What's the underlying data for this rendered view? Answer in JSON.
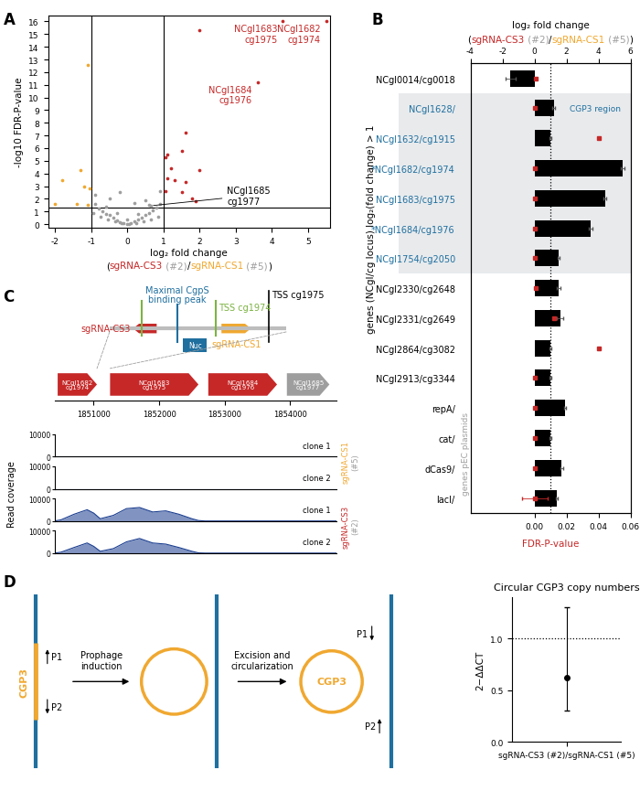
{
  "panel_labels": [
    "A",
    "B",
    "C",
    "D"
  ],
  "chart_data": [
    {
      "type": "scatter",
      "x_label": "log₂ fold change",
      "x_label_parts": [
        {
          "text": "(",
          "color": "#000000"
        },
        {
          "text": "sgRNA-CS3",
          "color": "#c62828"
        },
        {
          "text": " (#2)",
          "color": "#9e9e9e"
        },
        {
          "text": "/",
          "color": "#000000"
        },
        {
          "text": "sgRNA-CS1",
          "color": "#f0a830"
        },
        {
          "text": " (#5)",
          "color": "#9e9e9e"
        },
        {
          "text": ")",
          "color": "#000000"
        }
      ],
      "y_label": "-log10 FDR-P-value",
      "xlim": [
        -2.2,
        5.6
      ],
      "xticks": [
        -2,
        -1,
        0,
        1,
        2,
        3,
        4,
        5
      ],
      "ylim": [
        -0.3,
        16.5
      ],
      "yticks": [
        0,
        1,
        2,
        3,
        4,
        5,
        6,
        7,
        8,
        9,
        10,
        11,
        12,
        13,
        14,
        15,
        16
      ],
      "threshold_lines": {
        "x": [
          -1,
          1
        ],
        "y": [
          1.3
        ]
      },
      "series": [
        {
          "color": "#9e9e9e",
          "x": [
            -0.9,
            -0.8,
            -0.7,
            -0.6,
            -0.5,
            -0.4,
            -0.3,
            -0.2,
            -0.1,
            0.0,
            0.1,
            0.2,
            0.3,
            0.4,
            0.5,
            0.6,
            0.7,
            0.8,
            0.9,
            -0.95,
            -0.75,
            -0.55,
            -0.35,
            -0.15,
            0.05,
            0.25,
            0.45,
            0.65,
            0.85,
            -0.6,
            -0.3,
            0.0,
            0.3,
            0.6,
            -0.5,
            0.5,
            -0.2,
            0.2,
            0.9,
            -0.9,
            0.65
          ],
          "values": [
            1.6,
            1.2,
            1.0,
            0.8,
            0.7,
            0.5,
            0.3,
            0.15,
            0.05,
            0.0,
            0.08,
            0.2,
            0.35,
            0.5,
            0.7,
            0.9,
            1.1,
            1.3,
            1.6,
            0.9,
            0.6,
            0.4,
            0.2,
            0.05,
            0.01,
            0.1,
            0.25,
            0.4,
            0.6,
            1.4,
            0.9,
            0.4,
            0.8,
            1.5,
            2.0,
            1.9,
            2.5,
            1.7,
            2.6,
            2.3,
            1.45
          ]
        },
        {
          "color": "#c62828",
          "x": [
            5.5,
            4.3,
            3.6,
            2.0,
            1.6,
            1.5,
            2.0,
            1.1,
            1.05,
            1.2,
            1.1,
            1.3,
            1.6,
            1.05,
            1.5,
            1.8,
            1.9
          ],
          "values": [
            16.0,
            16.0,
            11.2,
            15.3,
            7.2,
            5.8,
            4.3,
            5.5,
            5.3,
            4.4,
            3.6,
            3.5,
            3.3,
            2.6,
            2.5,
            2.0,
            1.8
          ]
        },
        {
          "color": "#f0a830",
          "x": [
            -1.1,
            -1.8,
            -1.3,
            -1.2,
            -1.05,
            -2.0,
            -1.4,
            -1.1
          ],
          "values": [
            12.6,
            3.5,
            4.3,
            3.0,
            2.8,
            1.6,
            1.6,
            1.5
          ]
        }
      ],
      "annotations": [
        {
          "text": "NCgl1682\ncg1974",
          "x": 5.5,
          "y": 16.0,
          "color": "#c62828"
        },
        {
          "text": "NCgl1683\ncg1975",
          "x": 4.3,
          "y": 16.0,
          "color": "#c62828"
        },
        {
          "text": "NCgl1684\ncg1976",
          "x": 3.6,
          "y": 11.2,
          "color": "#c62828"
        }
      ],
      "callouts": [
        {
          "text": "NCgl1685\ncg1977",
          "x": 0.65,
          "y": 1.45,
          "color": "#000000"
        }
      ]
    },
    {
      "type": "bar",
      "orientation": "horizontal",
      "x_label": "log₂ fold change",
      "x_label_parts": [
        {
          "text": "(",
          "color": "#000000"
        },
        {
          "text": "sgRNA-CS3",
          "color": "#c62828"
        },
        {
          "text": " (#2)",
          "color": "#9e9e9e"
        },
        {
          "text": "/",
          "color": "#000000"
        },
        {
          "text": "sgRNA-CS1",
          "color": "#f0a830"
        },
        {
          "text": " (#5)",
          "color": "#9e9e9e"
        },
        {
          "text": ")",
          "color": "#000000"
        }
      ],
      "x2_label": {
        "text": "FDR-P-value",
        "color": "#c62828"
      },
      "y_label": "genes (NCgl/cg locus) log₂(fold change) > 1",
      "group_label": {
        "text": "genes pEC plasmids",
        "color": "#9e9e9e",
        "categories": [
          "repA/",
          "lacI/"
        ]
      },
      "region": {
        "text": "CGP3 region",
        "color": "#1f6f9f",
        "fill": "#e8eaec",
        "categories": [
          "NCgl1628/",
          "NCgl1754/cg2050"
        ]
      },
      "categories": [
        "NCgl0014/cg0018",
        "NCgl1628/",
        "NCgl1632/cg1915",
        "*NCgl1682/cg1974",
        "NCgl1683/cg1975",
        "*NCgl1684/cg1976",
        "NCgl1754/cg2050",
        "NCgl2330/cg2648",
        "NCgl2331/cg2649",
        "NCgl2864/cg3082",
        "NCgl2913/cg3344",
        "repA/",
        "cat/",
        "dCas9/",
        "lacI/"
      ],
      "category_colors": [
        "#000000",
        "#1f6f9f",
        "#1f6f9f",
        "#1f6f9f",
        "#1f6f9f",
        "#1f6f9f",
        "#1f6f9f",
        "#000000",
        "#000000",
        "#000000",
        "#000000",
        "#000000",
        "#000000",
        "#000000",
        "#000000"
      ],
      "xlim": [
        -4,
        6
      ],
      "xticks": [
        -4,
        -2,
        0,
        2,
        4,
        6
      ],
      "x2lim": [
        -0.04,
        0.06
      ],
      "x2ticks": [
        {
          "value": 0,
          "label": "0.00"
        },
        {
          "value": 0.02,
          "label": "0.02"
        },
        {
          "value": 0.04,
          "label": "0.04"
        },
        {
          "value": 0.06,
          "label": "0.06"
        }
      ],
      "reference_line": 1,
      "series": [
        {
          "type": "bar",
          "color": "#000000",
          "values": [
            -1.5,
            1.2,
            1.0,
            5.5,
            4.4,
            3.5,
            1.5,
            1.5,
            1.6,
            1.0,
            1.0,
            1.9,
            1.0,
            1.7,
            1.4
          ],
          "errors": [
            0.3,
            0.1,
            0.05,
            0.1,
            0.1,
            0.1,
            0.05,
            0.1,
            0.2,
            0.05,
            0.05,
            0.05,
            0.05,
            0.1,
            0.05
          ]
        },
        {
          "type": "scatter",
          "marker": "square",
          "color": "#c62828",
          "axis": "x2",
          "values": [
            0.001,
            0.0005,
            0.04,
            0.0005,
            0.0003,
            0.0003,
            0.0005,
            0.001,
            0.012,
            0.04,
            0.0005,
            0.0005,
            0.0005,
            0.0005,
            0.0005
          ],
          "errors": [
            0,
            0,
            0,
            0,
            0,
            0,
            0,
            0,
            0,
            0,
            0,
            0,
            0,
            0,
            0.008
          ]
        }
      ]
    },
    {
      "type": "area",
      "y_label": "Read coverage",
      "xlim": [
        1850400,
        1854700
      ],
      "xticks": [
        1851000,
        1852000,
        1853000,
        1854000
      ],
      "ylim": [
        0,
        10000
      ],
      "yticks": [
        0,
        10000
      ],
      "genes": [
        {
          "name": "NCgl1682\ncg1974",
          "start": 1850450,
          "end": 1851050,
          "color": "#c62828"
        },
        {
          "name": "NCgl1683\ncg1975",
          "start": 1851250,
          "end": 1852600,
          "color": "#c62828"
        },
        {
          "name": "NCgl1684\ncg1976",
          "start": 1852750,
          "end": 1853800,
          "color": "#c62828"
        },
        {
          "name": "NCgl1685\ncg1977",
          "start": 1853950,
          "end": 1854600,
          "color": "#9e9e9e"
        }
      ],
      "zoom_region": [
        1851050,
        1851250
      ],
      "x": [
        1850400,
        1850500,
        1850700,
        1850900,
        1851000,
        1851100,
        1851300,
        1851500,
        1851700,
        1851900,
        1852100,
        1852300,
        1852500,
        1852600,
        1852700,
        1854700
      ],
      "series": [
        {
          "label": "clone 1",
          "group": "sgRNA-CS1",
          "color": "#1a3d8f",
          "values": [
            0,
            0,
            0,
            0,
            0,
            0,
            0,
            0,
            0,
            0,
            0,
            0,
            0,
            0,
            0,
            0
          ]
        },
        {
          "label": "clone 2",
          "group": "sgRNA-CS1",
          "color": "#1a3d8f",
          "values": [
            0,
            0,
            0,
            0,
            0,
            0,
            0,
            0,
            0,
            0,
            0,
            0,
            0,
            0,
            0,
            0
          ]
        },
        {
          "label": "clone 1",
          "group": "sgRNA-CS3",
          "color": "#1a3d8f",
          "values": [
            0,
            500,
            3000,
            5000,
            3500,
            1000,
            2500,
            5500,
            6000,
            4000,
            4500,
            3000,
            1000,
            200,
            0,
            0
          ]
        },
        {
          "label": "clone 2",
          "group": "sgRNA-CS3",
          "color": "#1a3d8f",
          "values": [
            0,
            400,
            2500,
            4500,
            3000,
            800,
            2000,
            5000,
            6500,
            4500,
            4000,
            2500,
            800,
            100,
            0,
            0
          ]
        }
      ],
      "groups": [
        {
          "text": "sgRNA-CS1",
          "note": "(#5)",
          "color": "#f0a830"
        },
        {
          "text": "sgRNA-CS3",
          "note": "(#2)",
          "color": "#c62828"
        }
      ]
    },
    {
      "type": "scatter",
      "title": "Circular CGP3 copy numbers",
      "y_label": "2−ΔΔCT",
      "categories": [
        "sgRNA-CS3 (#2)/sgRNA-CS1 (#5)"
      ],
      "values": [
        0.62
      ],
      "lower": [
        0.3
      ],
      "upper": [
        1.3
      ],
      "ylim": [
        0,
        1.4
      ],
      "yticks": [
        {
          "value": 0,
          "label": "0.0"
        },
        {
          "value": 0.5,
          "label": "0.5"
        },
        {
          "value": 1,
          "label": "1.0"
        }
      ],
      "reference_line": 1,
      "color": "#000000",
      "marker": "circle"
    }
  ],
  "diagrams": {
    "C": {
      "sgrna_cs3": {
        "text": "sgRNA-CS3",
        "color": "#c62828"
      },
      "sgrna_cs1": {
        "text": "sgRNA-CS1",
        "color": "#f0a830"
      },
      "binding_peak": {
        "text": "Maximal CgpS\nbinding peak",
        "color": "#1f6f9f"
      },
      "tss_cg1974": {
        "text": "TSS cg1974",
        "color": "#7cb342"
      },
      "tss_cg1975": {
        "text": "TSS cg1975",
        "color": "#000000"
      },
      "nuc": {
        "text": "Nuc",
        "color": "#1f6f9f"
      }
    },
    "D": {
      "prophage_induction": "Prophage\ninduction",
      "excision": "Excision and\ncircularization",
      "cgp3": "CGP3",
      "p1": "P1",
      "p2": "P2",
      "dna_color": "#1f6f9f",
      "cgp3_color": "#f0a830"
    }
  }
}
